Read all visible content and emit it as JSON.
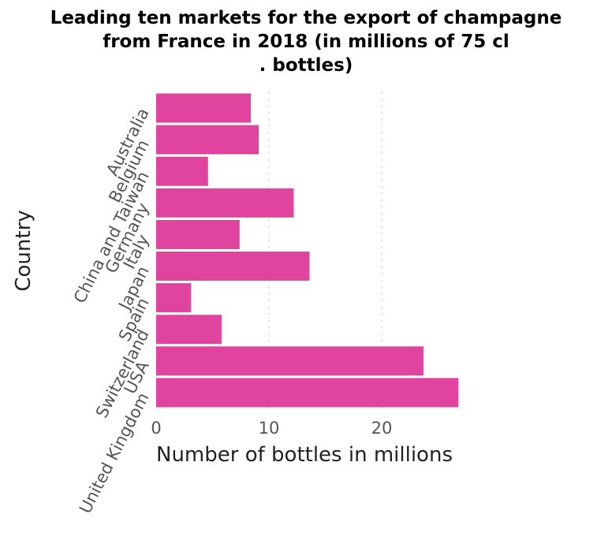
{
  "chart_data": {
    "type": "bar",
    "orientation": "horizontal",
    "title_lines": [
      "Leading ten markets for the export of champagne",
      "from France in 2018 (in millions of 75 cl",
      ". bottles)"
    ],
    "xlabel": "Number of bottles in millions",
    "ylabel": "Country",
    "categories": [
      "Australia",
      "Belgium",
      "China and Taiwan",
      "Germany",
      "Italy",
      "Japan",
      "Spain",
      "Switzerland",
      "USA",
      "United Kingdom"
    ],
    "values": [
      8.4,
      9.1,
      4.6,
      12.2,
      7.4,
      13.6,
      3.1,
      5.8,
      23.7,
      26.8
    ],
    "xlim": [
      0,
      28
    ],
    "xticks": [
      "0",
      "10",
      "20"
    ],
    "grid": "vertical dotted",
    "bar_color": "#e0449f"
  }
}
